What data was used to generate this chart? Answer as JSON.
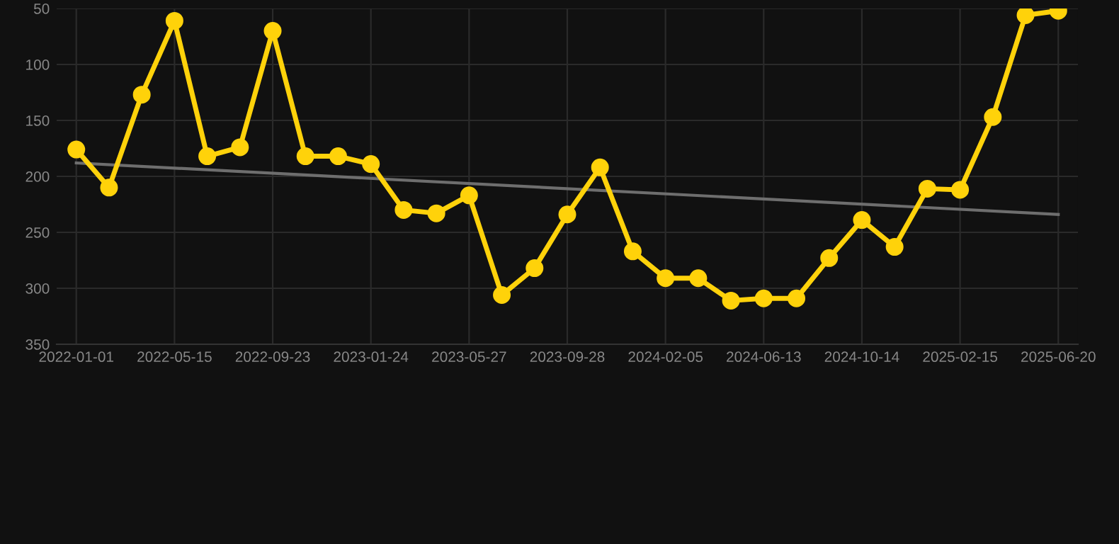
{
  "chart_data": {
    "type": "line",
    "categories": [
      "2022-01-01",
      null,
      null,
      "2022-05-15",
      null,
      null,
      "2022-09-23",
      null,
      null,
      "2023-01-24",
      null,
      null,
      "2023-05-27",
      null,
      null,
      "2023-09-28",
      null,
      null,
      "2024-02-05",
      null,
      null,
      "2024-06-13",
      null,
      null,
      "2024-10-14",
      null,
      null,
      "2025-02-15",
      null,
      null,
      "2025-06-20"
    ],
    "series": [
      {
        "color": "#ffd20a",
        "marker": "circle",
        "values": [
          176,
          210,
          127,
          61,
          182,
          174,
          70,
          182,
          182,
          189,
          230,
          233,
          217,
          306,
          282,
          234,
          192,
          267,
          291,
          291,
          311,
          309,
          309,
          273,
          239,
          263,
          211,
          212,
          147,
          56,
          52
        ]
      },
      {
        "type": "line",
        "color": "#6e6e6e",
        "marker": "none",
        "values": [
          188,
          null,
          null,
          null,
          null,
          null,
          null,
          null,
          null,
          null,
          null,
          null,
          null,
          null,
          null,
          null,
          null,
          null,
          null,
          null,
          null,
          null,
          null,
          null,
          null,
          null,
          null,
          null,
          null,
          null,
          234
        ]
      }
    ],
    "ylim": [
      350,
      50
    ],
    "yticks": [
      50,
      100,
      150,
      200,
      250,
      300,
      350
    ],
    "grid": true
  }
}
